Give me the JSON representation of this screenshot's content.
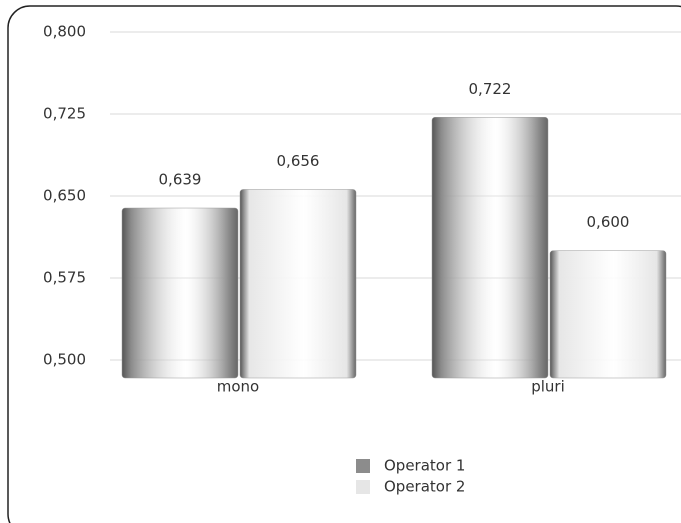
{
  "chart_data": {
    "type": "bar",
    "categories": [
      "mono",
      "pluri"
    ],
    "series": [
      {
        "name": "Operator 1",
        "color": "#8c8c8c",
        "values": [
          0.639,
          0.722
        ],
        "value_labels": [
          "0,639",
          "0,722"
        ]
      },
      {
        "name": "Operator 2",
        "color": "#e6e6e6",
        "values": [
          0.656,
          0.6
        ],
        "value_labels": [
          "0,656",
          "0,600"
        ]
      }
    ],
    "ylim": [
      0.5,
      0.8
    ],
    "yticks": [
      {
        "value": 0.5,
        "label": "0,500"
      },
      {
        "value": 0.575,
        "label": "0,575"
      },
      {
        "value": 0.65,
        "label": "0,650"
      },
      {
        "value": 0.725,
        "label": "0,725"
      },
      {
        "value": 0.8,
        "label": "0,800"
      }
    ],
    "grid": true
  }
}
